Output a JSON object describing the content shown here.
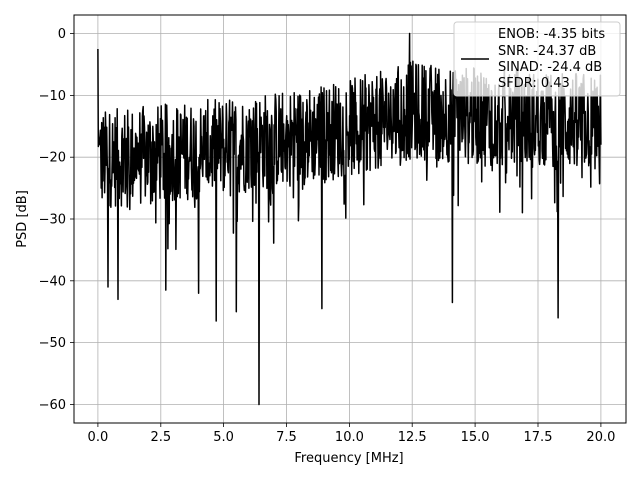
{
  "chart_data": {
    "type": "line",
    "xlabel": "Frequency [MHz]",
    "ylabel": "PSD [dB]",
    "xlim": [
      -0.95,
      21.0
    ],
    "ylim": [
      -63.0,
      3.0
    ],
    "xticks": [
      0.0,
      2.5,
      5.0,
      7.5,
      10.0,
      12.5,
      15.0,
      17.5,
      20.0
    ],
    "xtick_labels": [
      "0.0",
      "2.5",
      "5.0",
      "7.5",
      "10.0",
      "12.5",
      "15.0",
      "17.5",
      "20.0"
    ],
    "yticks": [
      0,
      -10,
      -20,
      -30,
      -40,
      -50,
      -60
    ],
    "ytick_labels": [
      "0",
      "−10",
      "−20",
      "−30",
      "−40",
      "−50",
      "−60"
    ],
    "grid": true,
    "legend_position": "top-right",
    "legend_lines": [
      "ENOB: -4.35 bits",
      "SNR: -24.37 dB",
      "SINAD: -24.4 dB",
      "SFDR: 0.43"
    ],
    "series": [
      {
        "color": "#000000",
        "x_range": [
          0.0,
          20.0
        ],
        "point_count": 1200,
        "noise_floor_trend_db": [
          {
            "x": 0.0,
            "y": -22
          },
          {
            "x": 5.0,
            "y": -20
          },
          {
            "x": 10.0,
            "y": -17
          },
          {
            "x": 12.5,
            "y": -14
          },
          {
            "x": 15.0,
            "y": -15
          },
          {
            "x": 20.0,
            "y": -16
          }
        ],
        "notable_points": [
          {
            "x": 0.0,
            "y": -2.5
          },
          {
            "x": 0.05,
            "y": -18
          },
          {
            "x": 0.4,
            "y": -41
          },
          {
            "x": 0.8,
            "y": -43
          },
          {
            "x": 2.7,
            "y": -41.5
          },
          {
            "x": 4.0,
            "y": -42
          },
          {
            "x": 4.7,
            "y": -46.5
          },
          {
            "x": 5.5,
            "y": -45
          },
          {
            "x": 6.4,
            "y": -60
          },
          {
            "x": 8.9,
            "y": -44.5
          },
          {
            "x": 12.4,
            "y": 0
          },
          {
            "x": 14.1,
            "y": -43.5
          },
          {
            "x": 18.3,
            "y": -46
          }
        ]
      }
    ]
  }
}
